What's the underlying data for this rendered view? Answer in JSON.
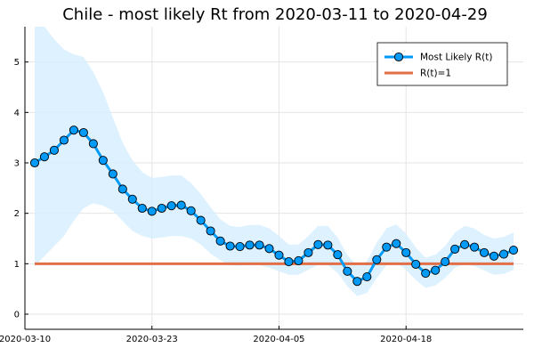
{
  "chart_data": {
    "type": "line",
    "title": "Chile - most likely Rt from 2020-03-11 to 2020-04-29",
    "xlabel": "",
    "ylabel": "",
    "x_start": "2020-03-11",
    "x_end": "2020-04-29",
    "x_axis_range": [
      "2020-03-10",
      "2020-04-30"
    ],
    "x_ticks": [
      "2020-03-10",
      "2020-03-23",
      "2020-04-05",
      "2020-04-18"
    ],
    "ylim": [
      -0.3,
      5.7
    ],
    "y_ticks": [
      0,
      1,
      2,
      3,
      4,
      5
    ],
    "grid": true,
    "legend_position": "top-right",
    "series": [
      {
        "name": "Most Likely R(t)",
        "style": "line-with-markers",
        "color": "#009AF9",
        "values": [
          3.0,
          3.12,
          3.25,
          3.45,
          3.65,
          3.6,
          3.38,
          3.05,
          2.78,
          2.48,
          2.28,
          2.1,
          2.04,
          2.1,
          2.15,
          2.16,
          2.05,
          1.86,
          1.65,
          1.45,
          1.35,
          1.34,
          1.37,
          1.37,
          1.3,
          1.17,
          1.04,
          1.06,
          1.22,
          1.38,
          1.37,
          1.18,
          0.85,
          0.65,
          0.74,
          1.08,
          1.33,
          1.4,
          1.22,
          0.99,
          0.81,
          0.87,
          1.04,
          1.29,
          1.38,
          1.33,
          1.22,
          1.15,
          1.19,
          1.27
        ]
      },
      {
        "name": "R(t)=1",
        "style": "line",
        "color": "#E26F46",
        "values": [
          1,
          1
        ]
      }
    ],
    "band": {
      "color": "#D8EEFF",
      "lower": [
        0.95,
        1.15,
        1.35,
        1.55,
        1.85,
        2.1,
        2.2,
        2.15,
        2.05,
        1.85,
        1.65,
        1.55,
        1.5,
        1.52,
        1.55,
        1.55,
        1.5,
        1.38,
        1.2,
        1.07,
        0.97,
        0.96,
        0.97,
        0.97,
        0.92,
        0.85,
        0.78,
        0.78,
        0.88,
        0.98,
        0.97,
        0.82,
        0.55,
        0.36,
        0.42,
        0.72,
        0.97,
        1.02,
        0.88,
        0.68,
        0.52,
        0.57,
        0.72,
        0.92,
        0.99,
        0.95,
        0.87,
        0.78,
        0.8,
        0.88
      ],
      "upper": [
        5.95,
        5.7,
        5.45,
        5.25,
        5.15,
        5.1,
        4.8,
        4.4,
        3.9,
        3.4,
        3.05,
        2.82,
        2.7,
        2.72,
        2.75,
        2.75,
        2.6,
        2.38,
        2.12,
        1.88,
        1.75,
        1.73,
        1.77,
        1.77,
        1.7,
        1.55,
        1.38,
        1.38,
        1.55,
        1.75,
        1.75,
        1.52,
        1.17,
        0.96,
        1.05,
        1.42,
        1.7,
        1.78,
        1.6,
        1.32,
        1.12,
        1.18,
        1.35,
        1.62,
        1.75,
        1.7,
        1.57,
        1.5,
        1.53,
        1.62
      ]
    }
  }
}
